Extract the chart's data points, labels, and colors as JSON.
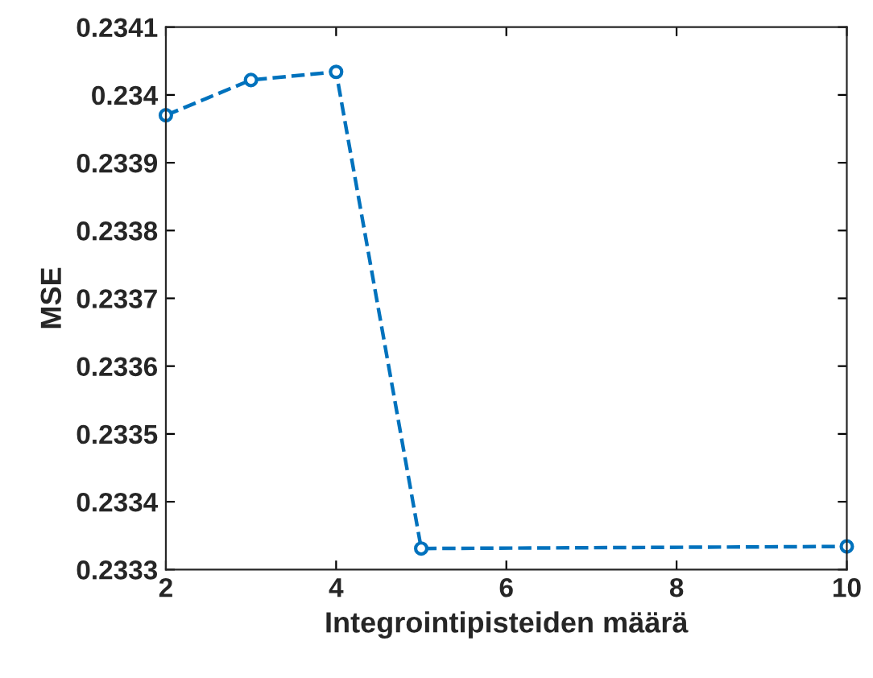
{
  "chart_data": {
    "type": "line",
    "xlabel": "Integrointipisteiden määrä",
    "ylabel": "MSE",
    "x": [
      2,
      3,
      4,
      5,
      10
    ],
    "series": [
      {
        "color": "#0072bd",
        "values": [
          0.23397,
          0.234022,
          0.234034,
          0.233331,
          0.233334
        ]
      }
    ],
    "xlim": [
      2,
      10
    ],
    "xticks": [
      2,
      4,
      6,
      8,
      10
    ],
    "ylim": [
      0.2333,
      0.2341
    ],
    "yticks": [
      0.2333,
      0.2334,
      0.2335,
      0.2336,
      0.2337,
      0.2338,
      0.2339,
      0.234,
      0.2341
    ],
    "grid": false,
    "marker": "circle",
    "line_style": "dashed"
  }
}
